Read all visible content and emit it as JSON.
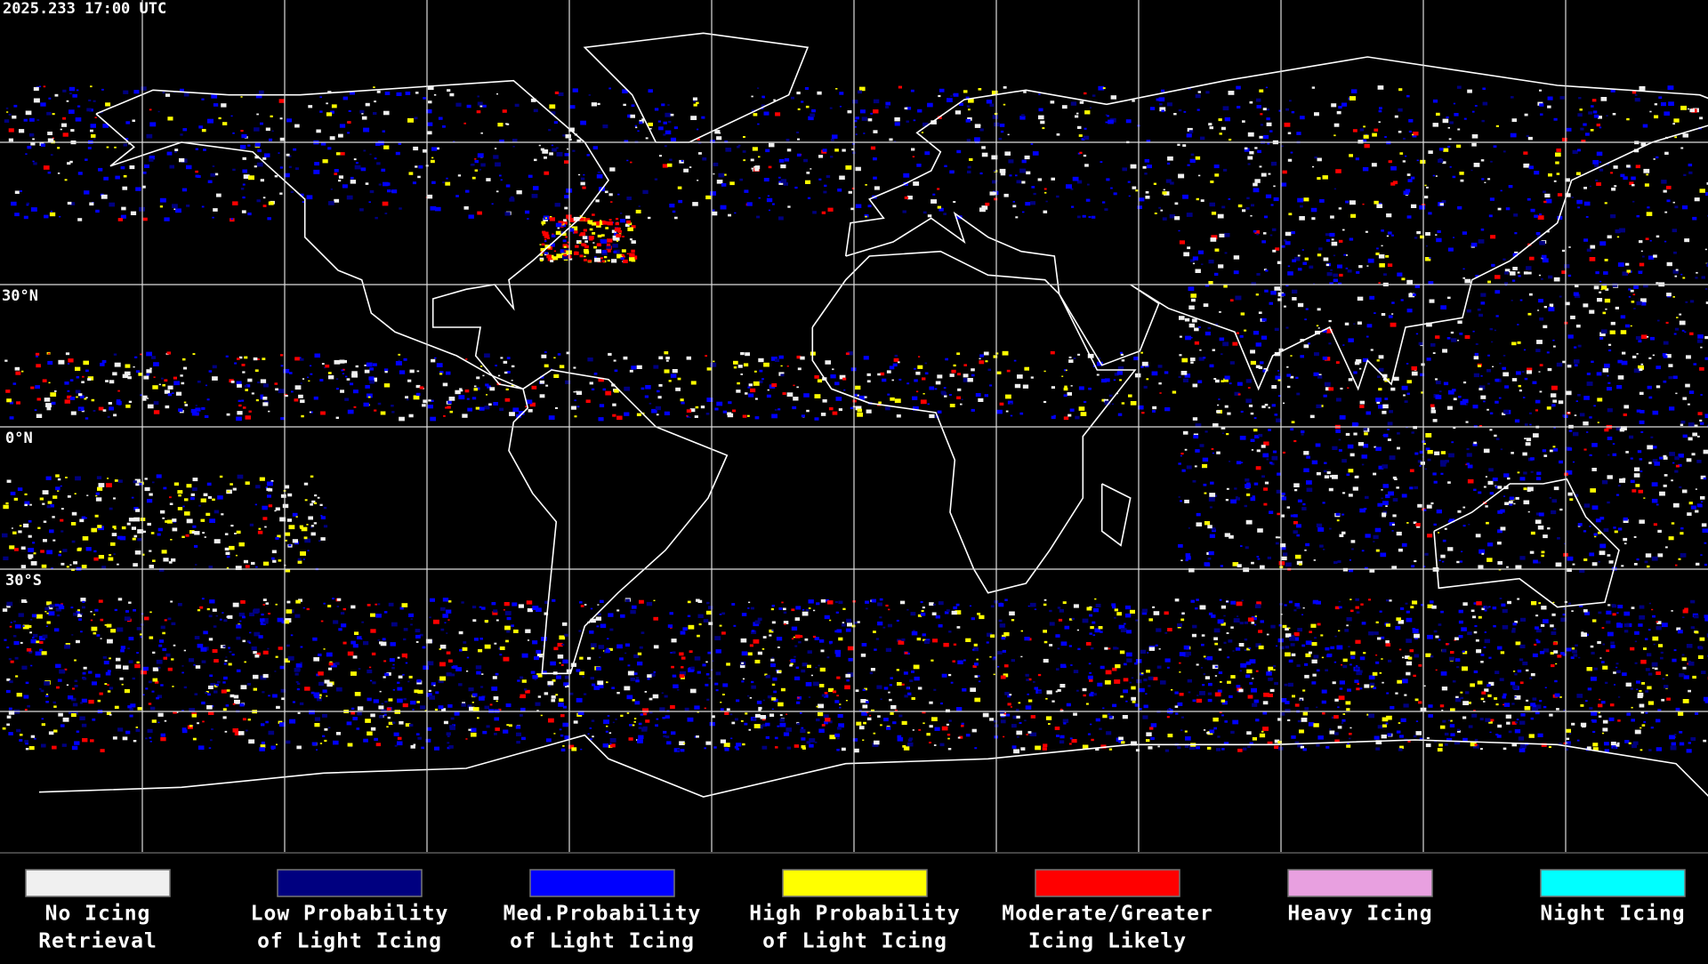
{
  "timestamp": "2025.233 17:00 UTC",
  "latitude_labels": [
    "30°N",
    "0°N",
    "30°S"
  ],
  "legend": [
    {
      "lines": [
        "No Icing",
        "Retrieval"
      ],
      "color": "#f0f0f0"
    },
    {
      "lines": [
        "Low Probability",
        "of Light Icing"
      ],
      "color": "#000080"
    },
    {
      "lines": [
        "Med.Probability",
        "of Light Icing"
      ],
      "color": "#0000ff"
    },
    {
      "lines": [
        "High Probability",
        "of Light Icing"
      ],
      "color": "#ffff00"
    },
    {
      "lines": [
        "Moderate/Greater",
        "Icing Likely"
      ],
      "color": "#ff0000"
    },
    {
      "lines": [
        "Heavy Icing"
      ],
      "color": "#e8a0e0"
    },
    {
      "lines": [
        "Night Icing"
      ],
      "color": "#00ffff"
    }
  ]
}
